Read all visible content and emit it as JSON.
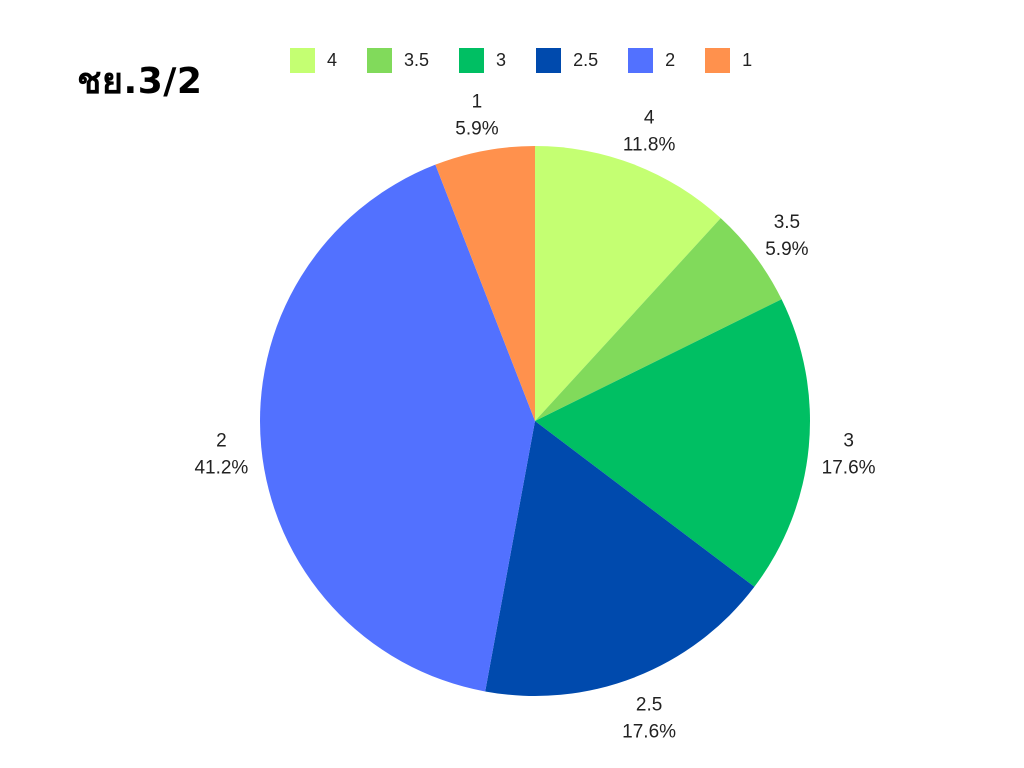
{
  "chart_data": {
    "type": "pie",
    "title": "ชย.3/2",
    "legend_position": "top",
    "slices": [
      {
        "label": "4",
        "value": 11.8,
        "percent_text": "11.8%",
        "color": "#C4FF72"
      },
      {
        "label": "3.5",
        "value": 5.9,
        "percent_text": "5.9%",
        "color": "#81DA5B"
      },
      {
        "label": "3",
        "value": 17.6,
        "percent_text": "17.6%",
        "color": "#00BF63"
      },
      {
        "label": "2.5",
        "value": 17.6,
        "percent_text": "17.6%",
        "color": "#004AAD"
      },
      {
        "label": "2",
        "value": 41.2,
        "percent_text": "41.2%",
        "color": "#5271FF"
      },
      {
        "label": "1",
        "value": 5.9,
        "percent_text": "5.9%",
        "color": "#FF914D"
      }
    ]
  }
}
